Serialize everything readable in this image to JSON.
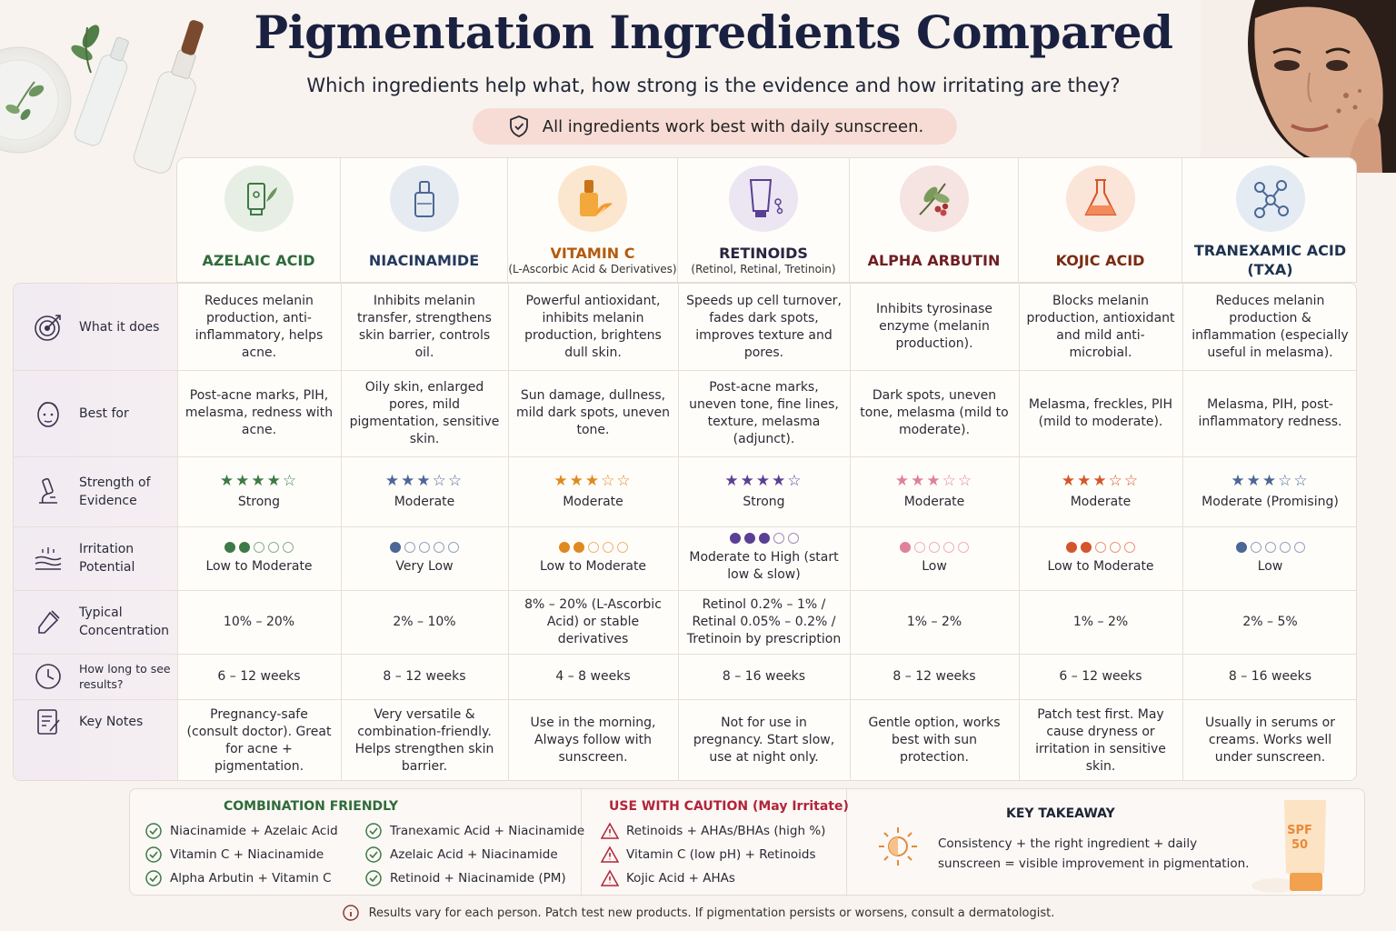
{
  "title": "Pigmentation Ingredients Compared",
  "subtitle": "Which ingredients help what, how strong is the evidence and how irritating are they?",
  "sunscreen_note": "All ingredients work best with daily sunscreen.",
  "row_labels": {
    "what": "What it does",
    "best": "Best for",
    "evidence": "Strength of Evidence",
    "irritation": "Irritation Potential",
    "concentration": "Typical Concentration",
    "timeline": "How long to see results?",
    "notes": "Key Notes"
  },
  "columns": [
    {
      "name": "AZELAIC ACID",
      "sub": "",
      "color": "#2f6b3a",
      "icon": "tube-icon",
      "icon_bg": "#e7efe4",
      "what": "Reduces melanin production, anti-inflammatory, helps acne.",
      "best": "Post-acne marks, PIH, melasma, redness with acne.",
      "stars": "★★★★☆",
      "star_color": "#3d7a46",
      "evidence": "Strong",
      "dots_filled": 2,
      "irritation": "Low to Moderate",
      "concentration": "10% – 20%",
      "timeline": "6 – 12 weeks",
      "notes": "Pregnancy-safe (consult doctor). Great for acne + pigmentation."
    },
    {
      "name": "NIACINAMIDE",
      "sub": "",
      "color": "#253a5e",
      "icon": "dropper-bottle-icon",
      "icon_bg": "#e6ebf2",
      "what": "Inhibits melanin transfer, strengthens skin barrier, controls oil.",
      "best": "Oily skin, enlarged pores, mild pigmentation, sensitive skin.",
      "stars": "★★★☆☆",
      "star_color": "#4a6796",
      "evidence": "Moderate",
      "dots_filled": 1,
      "irritation": "Very Low",
      "concentration": "2% – 10%",
      "timeline": "8 – 12 weeks",
      "notes": "Very versatile & combination-friendly. Helps strengthen skin barrier."
    },
    {
      "name": "VITAMIN C",
      "sub": "(L-Ascorbic Acid & Derivatives)",
      "color": "#b45a0d",
      "icon": "orange-serum-icon",
      "icon_bg": "#fbe7cf",
      "what": "Powerful antioxidant, inhibits melanin production, brightens dull skin.",
      "best": "Sun damage, dullness, mild dark spots, uneven tone.",
      "stars": "★★★☆☆",
      "star_color": "#e0891f",
      "evidence": "Moderate",
      "dots_filled": 2,
      "irritation": "Low to Moderate",
      "concentration": "8% – 20% (L-Ascorbic Acid) or stable derivatives",
      "timeline": "4 – 8 weeks",
      "notes": "Use in the morning, Always follow with sunscreen."
    },
    {
      "name": "RETINOIDS",
      "sub": "(Retinol, Retinal, Tretinoin)",
      "color": "#2a2440",
      "icon": "retinoid-tube-icon",
      "icon_bg": "#ebe6f1",
      "what": "Speeds up cell turnover, fades dark spots, improves texture and pores.",
      "best": "Post-acne marks, uneven tone, fine lines, texture, melasma (adjunct).",
      "stars": "★★★★☆",
      "star_color": "#5a3f94",
      "evidence": "Strong",
      "dots_filled": 3,
      "irritation": "Moderate to High (start low & slow)",
      "concentration": "Retinol 0.2% – 1% / Retinal 0.05% – 0.2% / Tretinoin by prescription",
      "timeline": "8 – 16 weeks",
      "notes": "Not for use in pregnancy. Start slow, use at night only."
    },
    {
      "name": "ALPHA ARBUTIN",
      "sub": "",
      "color": "#6e1f22",
      "icon": "bearberry-leaf-icon",
      "icon_bg": "#f6e4e2",
      "what": "Inhibits tyrosinase enzyme (melanin production).",
      "best": "Dark spots, uneven tone, melasma (mild to moderate).",
      "stars": "★★★☆☆",
      "star_color": "#e0809a",
      "evidence": "Moderate",
      "dots_filled": 1,
      "irritation": "Low",
      "concentration": "1% – 2%",
      "timeline": "8 – 12 weeks",
      "notes": "Gentle option, works best with sun protection."
    },
    {
      "name": "KOJIC ACID",
      "sub": "",
      "color": "#7a2c12",
      "icon": "flask-icon",
      "icon_bg": "#fbe4d8",
      "what": "Blocks melanin production, antioxidant and mild anti-microbial.",
      "best": "Melasma, freckles, PIH (mild to moderate).",
      "stars": "★★★☆☆",
      "star_color": "#d4552a",
      "evidence": "Moderate",
      "dots_filled": 2,
      "irritation": "Low to Moderate",
      "concentration": "1% – 2%",
      "timeline": "6 – 12 weeks",
      "notes": "Patch test first. May cause dryness or irritation in sensitive skin."
    },
    {
      "name": "TRANEXAMIC ACID (TXA)",
      "sub": "",
      "color": "#1f3350",
      "icon": "molecule-icon",
      "icon_bg": "#e4ebf3",
      "what": "Reduces melanin production & inflammation (especially useful in melasma).",
      "best": "Melasma, PIH, post-inflammatory redness.",
      "stars": "★★★☆☆",
      "star_color": "#4a6796",
      "evidence": "Moderate (Promising)",
      "dots_filled": 1,
      "irritation": "Low",
      "concentration": "2% – 5%",
      "timeline": "8 – 16 weeks",
      "notes": "Usually in serums or creams. Works well under sunscreen."
    }
  ],
  "combination": {
    "title": "COMBINATION FRIENDLY",
    "items": [
      "Niacinamide + Azelaic Acid",
      "Vitamin C + Niacinamide",
      "Alpha Arbutin + Vitamin C",
      "Tranexamic Acid + Niacinamide",
      "Azelaic Acid + Niacinamide",
      "Retinoid + Niacinamide (PM)"
    ]
  },
  "caution": {
    "title": "USE WITH CAUTION (May Irritate)",
    "items": [
      "Retinoids + AHAs/BHAs (high %)",
      "Vitamin C (low pH) + Retinoids",
      "Kojic Acid + AHAs"
    ]
  },
  "takeaway": {
    "title": "KEY TAKEAWAY",
    "text": "Consistency + the right ingredient + daily sunscreen = visible improvement in pigmentation.",
    "spf_top": "SPF",
    "spf_num": "50"
  },
  "footer": "Results vary for each person. Patch test new products. If pigmentation persists or worsens, consult a dermatologist.",
  "colors": {
    "title": "#1a2140",
    "combination": "#2f6b3a",
    "caution": "#b2243a",
    "pill": "#f7dcd6"
  }
}
